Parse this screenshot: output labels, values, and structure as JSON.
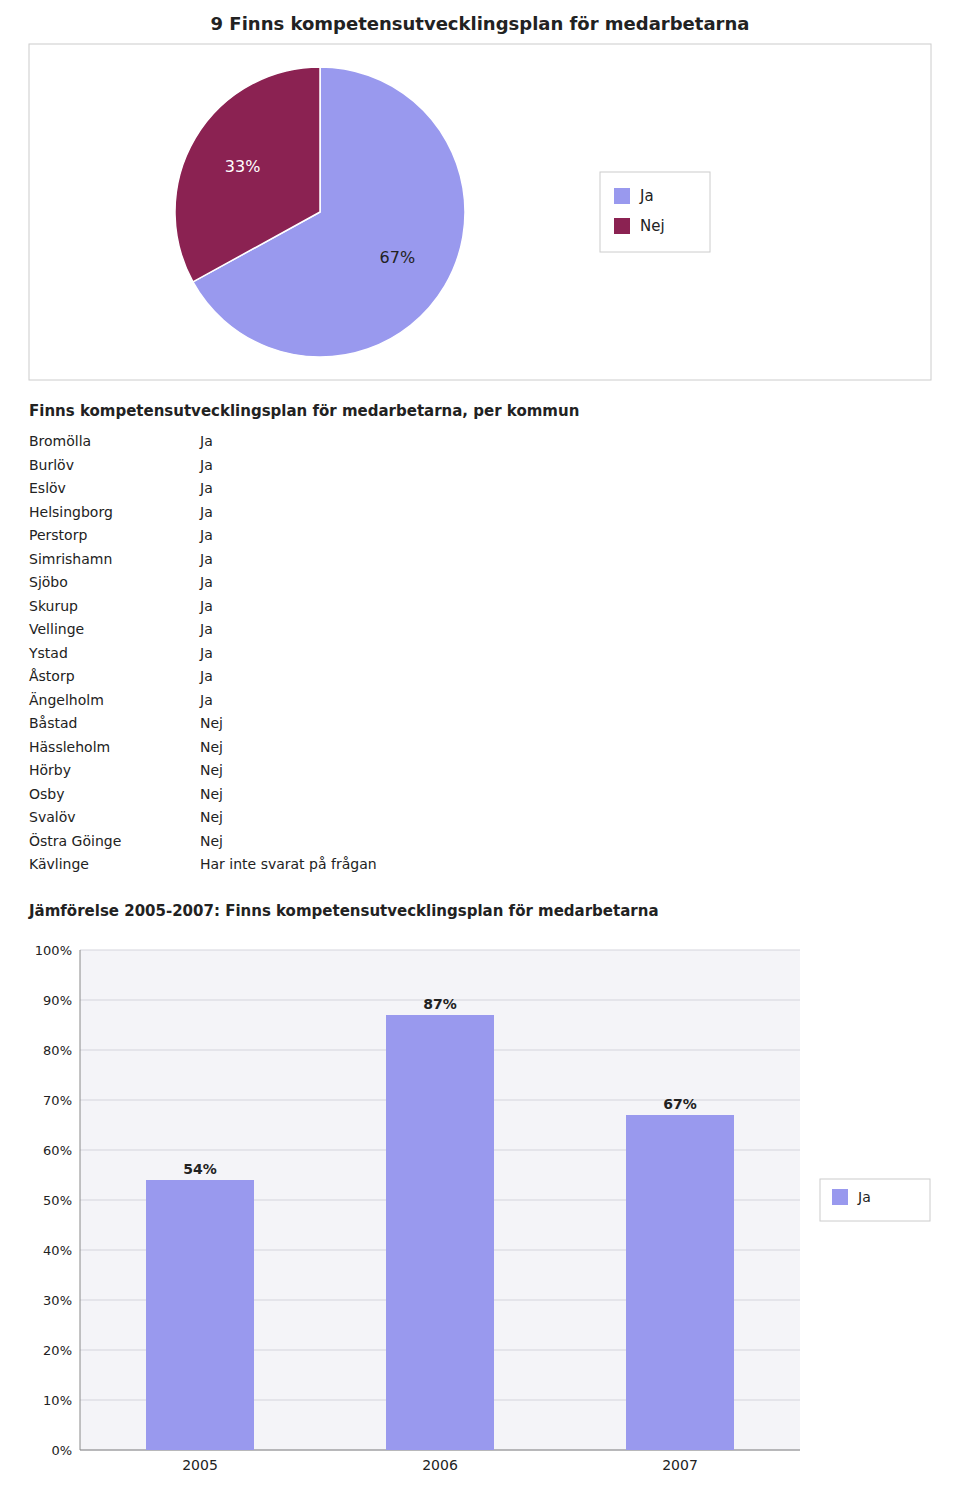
{
  "chart_data": [
    {
      "type": "pie",
      "title": "9 Finns kompetensutvecklingsplan för medarbetarna",
      "categories": [
        "Ja",
        "Nej"
      ],
      "values": [
        67,
        33
      ],
      "value_labels": [
        "67%",
        "33%"
      ],
      "colors": [
        "#9999ee",
        "#8B2252"
      ],
      "data_labels": true,
      "legend": "right"
    },
    {
      "type": "table",
      "title": "Finns kompetensutvecklingsplan för medarbetarna, per kommun",
      "categories": [
        "Bromölla",
        "Burlöv",
        "Eslöv",
        "Helsingborg",
        "Perstorp",
        "Simrishamn",
        "Sjöbo",
        "Skurup",
        "Vellinge",
        "Ystad",
        "Åstorp",
        "Ängelholm",
        "Båstad",
        "Hässleholm",
        "Hörby",
        "Osby",
        "Svalöv",
        "Östra Göinge",
        "Kävlinge"
      ],
      "values": [
        "Ja",
        "Ja",
        "Ja",
        "Ja",
        "Ja",
        "Ja",
        "Ja",
        "Ja",
        "Ja",
        "Ja",
        "Ja",
        "Ja",
        "Nej",
        "Nej",
        "Nej",
        "Nej",
        "Nej",
        "Nej",
        "Har inte svarat på frågan"
      ]
    },
    {
      "type": "bar",
      "title": "Jämförelse 2005-2007: Finns kompetensutvecklingsplan för medarbetarna",
      "categories": [
        "2005",
        "2006",
        "2007"
      ],
      "series": [
        {
          "name": "Ja",
          "color": "#9999ee",
          "values": [
            54,
            87,
            67
          ],
          "value_labels": [
            "54%",
            "87%",
            "67%"
          ]
        }
      ],
      "ylim": [
        0,
        100
      ],
      "yticks": [
        {
          "value": 0,
          "label": "0%"
        },
        {
          "value": 10,
          "label": "10%"
        },
        {
          "value": 20,
          "label": "20%"
        },
        {
          "value": 30,
          "label": "30%"
        },
        {
          "value": 40,
          "label": "40%"
        },
        {
          "value": 50,
          "label": "50%"
        },
        {
          "value": 60,
          "label": "60%"
        },
        {
          "value": 70,
          "label": "70%"
        },
        {
          "value": 80,
          "label": "80%"
        },
        {
          "value": 90,
          "label": "90%"
        },
        {
          "value": 100,
          "label": "100%"
        }
      ],
      "grid": true,
      "data_labels": true,
      "legend": "right"
    }
  ]
}
